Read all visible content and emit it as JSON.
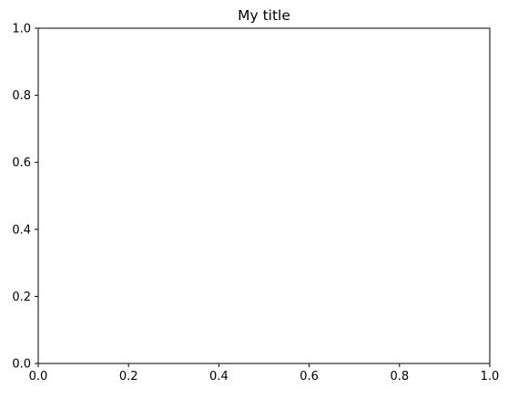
{
  "chart_data": {
    "type": "scatter",
    "title": "My title",
    "xlabel": "",
    "ylabel": "",
    "xlim": [
      0,
      1
    ],
    "ylim": [
      0,
      1
    ],
    "x_ticks": [
      "0.0",
      "0.2",
      "0.4",
      "0.6",
      "0.8",
      "1.0"
    ],
    "y_ticks": [
      "0.0",
      "0.2",
      "0.4",
      "0.6",
      "0.8",
      "1.0"
    ],
    "series": [],
    "grid": false,
    "legend": "none"
  },
  "colors": {
    "background": "#ffffff",
    "axes": "#000000"
  }
}
